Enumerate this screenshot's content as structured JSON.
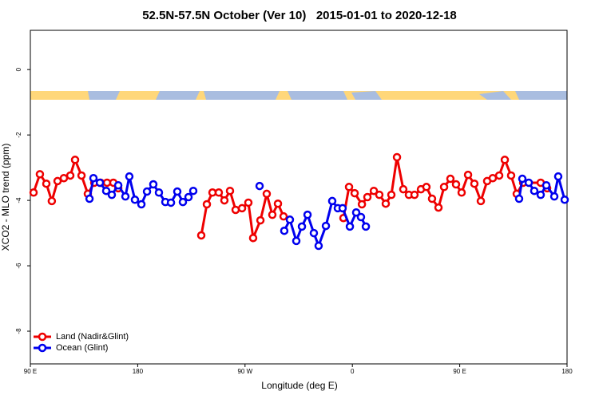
{
  "chart_data": {
    "type": "line",
    "title": "52.5N-57.5N October (Ver 10)   2015-01-01 to 2020-12-18",
    "x_label": "Longitude (deg E)",
    "y_label": "XCO2 - MLO trend (ppm)",
    "xlim": [
      90,
      540
    ],
    "ylim": [
      -9,
      1.2
    ],
    "xticks": [
      {
        "value": 90,
        "label": "90 E"
      },
      180,
      {
        "value": 270,
        "label": "90 W"
      },
      {
        "value": 360,
        "label": "0"
      },
      {
        "value": 450,
        "label": "90 E"
      },
      {
        "value": 540,
        "label": "180"
      }
    ],
    "yticks": [
      -8,
      -6,
      -4,
      -2,
      0
    ],
    "legend": "bottom-left",
    "series": [
      {
        "name": "Land (Nadir&Glint)",
        "color": "#ee0000",
        "x": [
          92.7,
          98,
          103.4,
          108,
          112.8,
          118.1,
          123.5,
          127.5,
          132.9,
          138.2,
          143.6,
          148.9,
          154.3,
          159.6,
          163.7,
          null,
          233.3,
          238,
          242.7,
          248,
          252.7,
          257.4,
          262.1,
          267.5,
          272.8,
          276.8,
          282.9,
          288.2,
          292.9,
          297.6,
          302.3,
          null,
          352.5,
          357.2,
          361.9,
          368,
          372.6,
          378,
          382.6,
          388,
          392.7,
          397.4,
          402.7,
          407.4,
          412.1,
          417.5,
          422.1,
          426.8,
          432.2,
          436.9,
          442.2,
          446.9,
          451.6,
          457,
          462.3,
          467.7,
          473,
          477.7,
          483.1,
          487.8,
          493.1,
          497.8,
          503.2,
          517.9,
          523.3
        ],
        "values": [
          -3.76,
          -3.2,
          -3.49,
          -4.02,
          -3.41,
          -3.32,
          -3.24,
          -2.76,
          -3.24,
          -3.8,
          -3.46,
          -3.46,
          -3.46,
          -3.46,
          -3.63,
          null,
          -5.07,
          -4.12,
          -3.76,
          -3.76,
          -4.0,
          -3.71,
          -4.29,
          -4.24,
          -4.07,
          -5.15,
          -4.61,
          -3.8,
          -4.44,
          -4.1,
          -4.49,
          null,
          -4.54,
          -3.59,
          -3.78,
          -4.12,
          -3.9,
          -3.71,
          -3.83,
          -4.1,
          -3.83,
          -2.68,
          -3.66,
          -3.83,
          -3.83,
          -3.66,
          -3.59,
          -3.95,
          -4.22,
          -3.59,
          -3.34,
          -3.51,
          -3.76,
          -3.22,
          -3.49,
          -4.02,
          -3.41,
          -3.32,
          -3.24,
          -2.76,
          -3.24,
          -3.8,
          -3.46,
          -3.46,
          -3.63
        ]
      },
      {
        "name": "Ocean (Glint)",
        "color": "#0000ee",
        "x": [
          139.6,
          142.9,
          148.3,
          153.6,
          158.3,
          163.7,
          169.7,
          173,
          177.7,
          183.1,
          187.8,
          193.1,
          197.8,
          203.2,
          207.9,
          213.2,
          217.9,
          222.6,
          226.6,
          null,
          282.2,
          null,
          302.9,
          307.6,
          313,
          317.7,
          322.4,
          327.7,
          331.7,
          337.8,
          343.1,
          347.8,
          351.8,
          357.9,
          363.2,
          367.2,
          371.3,
          null,
          499.8,
          502.5,
          507.9,
          512.5,
          517.9,
          522.6,
          529.3,
          532.6,
          538
        ],
        "values": [
          -3.95,
          -3.32,
          -3.46,
          -3.71,
          -3.83,
          -3.54,
          -3.88,
          -3.27,
          -3.98,
          -4.12,
          -3.73,
          -3.51,
          -3.76,
          -4.05,
          -4.07,
          -3.73,
          -4.05,
          -3.9,
          -3.71,
          null,
          -3.56,
          null,
          -4.93,
          -4.59,
          -5.24,
          -4.8,
          -4.44,
          -5.0,
          -5.39,
          -4.78,
          -4.02,
          -4.24,
          -4.24,
          -4.8,
          -4.37,
          -4.51,
          -4.8,
          null,
          -3.95,
          -3.34,
          -3.46,
          -3.71,
          -3.83,
          -3.54,
          -3.88,
          -3.27,
          -3.98
        ]
      }
    ]
  }
}
